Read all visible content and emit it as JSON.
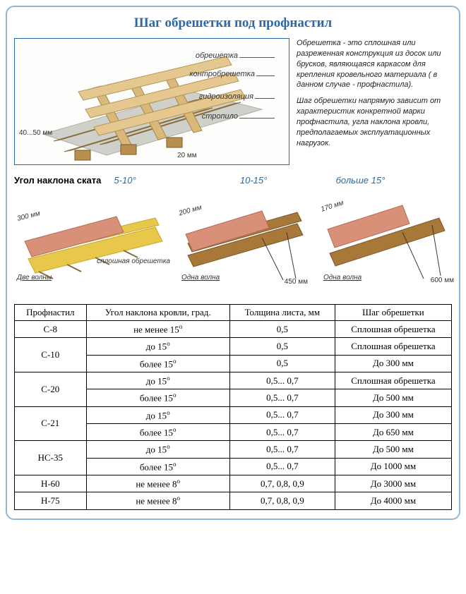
{
  "title": "Шаг обрешетки под профнастил",
  "diagram": {
    "labels": {
      "obreshetka": "обрешетка",
      "kontro": "контробрешетка",
      "gidro": "гидроизоляция",
      "stropilo": "стропило"
    },
    "dims": {
      "left": "40...50 мм",
      "right": "20 мм"
    },
    "colors": {
      "wood_light": "#d9b97a",
      "wood_dark": "#b88f4e",
      "membrane": "#cfd0ca",
      "membrane_edge": "#aeb0a8"
    }
  },
  "description": {
    "p1": "Обрешетка - это сплошная или разреженная конструкция из досок или брусков, являющаяся каркасом для крепления кровельного материала ( в данном случае - профнастила).",
    "p2": "Шаг обрешетки напрямую зависит от характеристик конкретной марки профнастила, угла наклона кровли, предполагаемых эксплуатационных нагрузок."
  },
  "angles": {
    "heading": "Угол наклона ската",
    "ranges": {
      "r1": "5-10°",
      "r2": "10-15°",
      "r3": "больше 15°"
    },
    "labels": {
      "dve_volny": "Две волны",
      "odna_volna": "Одна волна",
      "sploshnaya": "сплошная обрешетка",
      "dim300": "300 мм",
      "dim200": "200 мм",
      "dim170": "170 мм",
      "dim450": "450 мм",
      "dim600": "600 мм"
    },
    "colors": {
      "corrugated": "#d89078",
      "corrugated_dark": "#b86a50",
      "lath_yellow": "#e8c84a",
      "lath_brown": "#a87838",
      "shadow": "#3a3a3a"
    }
  },
  "table": {
    "headers": {
      "c1": "Профнастил",
      "c2": "Угол наклона кровли, град.",
      "c3": "Толщина листа, мм",
      "c4": "Шаг обрешетки"
    },
    "rows": [
      {
        "p": "С-8",
        "rowspan": 1,
        "cells": [
          [
            "не менее 15",
            "о"
          ],
          "0,5",
          "Сплошная обрешетка"
        ]
      },
      {
        "p": "С-10",
        "rowspan": 2,
        "cells": [
          [
            "до 15",
            "о"
          ],
          "0,5",
          "Сплошная обрешетка"
        ]
      },
      {
        "cells": [
          [
            "более 15",
            "о"
          ],
          "0,5",
          "До 300 мм"
        ]
      },
      {
        "p": "С-20",
        "rowspan": 2,
        "cells": [
          [
            "до 15",
            "о"
          ],
          "0,5... 0,7",
          "Сплошная обрешетка"
        ]
      },
      {
        "cells": [
          [
            "более 15",
            "о"
          ],
          "0,5... 0,7",
          "До 500 мм"
        ]
      },
      {
        "p": "С-21",
        "rowspan": 2,
        "cells": [
          [
            "до 15",
            "о"
          ],
          "0,5... 0,7",
          "До 300 мм"
        ]
      },
      {
        "cells": [
          [
            "более 15",
            "о"
          ],
          "0,5... 0,7",
          "До 650 мм"
        ]
      },
      {
        "p": "НС-35",
        "rowspan": 2,
        "cells": [
          [
            "до 15",
            "о"
          ],
          "0,5... 0,7",
          "До 500 мм"
        ]
      },
      {
        "cells": [
          [
            "более 15",
            "о"
          ],
          "0,5... 0,7",
          "До 1000 мм"
        ]
      },
      {
        "p": "Н-60",
        "rowspan": 1,
        "cells": [
          [
            "не менее 8",
            "о"
          ],
          "0,7, 0,8, 0,9",
          "До 3000 мм"
        ]
      },
      {
        "p": "Н-75",
        "rowspan": 1,
        "cells": [
          [
            "не менее 8",
            "о"
          ],
          "0,7, 0,8, 0,9",
          "До 4000 мм"
        ]
      }
    ]
  }
}
